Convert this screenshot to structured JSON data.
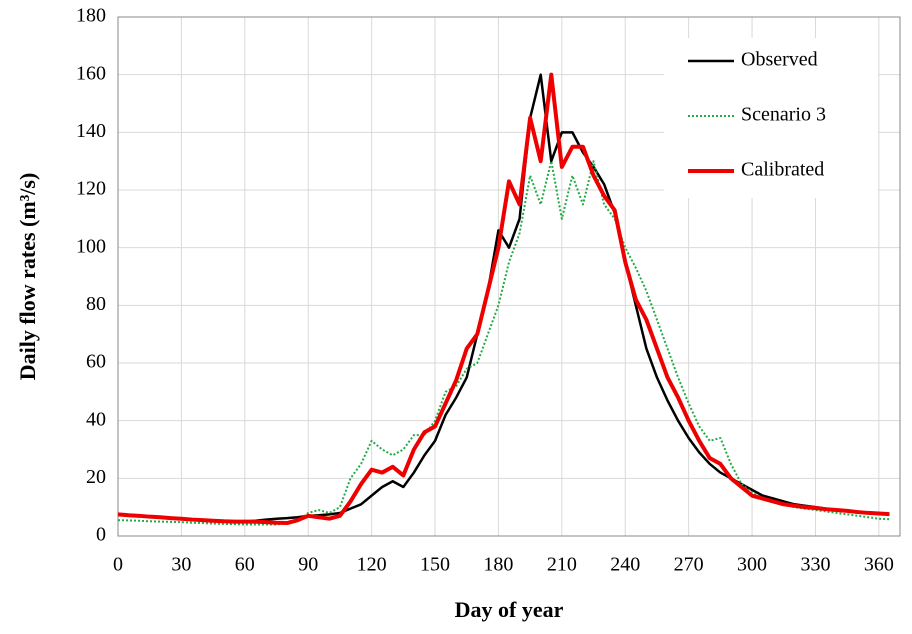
{
  "chart_data": {
    "type": "line",
    "x_label": "Day of year",
    "y_label": "Daily flow rates (m³/s)",
    "x": [
      0,
      5,
      10,
      15,
      20,
      25,
      30,
      35,
      40,
      45,
      50,
      55,
      60,
      65,
      70,
      75,
      80,
      85,
      90,
      95,
      100,
      105,
      110,
      115,
      120,
      125,
      130,
      135,
      140,
      145,
      150,
      155,
      160,
      165,
      170,
      175,
      180,
      185,
      190,
      195,
      200,
      205,
      210,
      215,
      220,
      225,
      230,
      235,
      240,
      245,
      250,
      255,
      260,
      265,
      270,
      275,
      280,
      285,
      290,
      295,
      300,
      305,
      310,
      315,
      320,
      325,
      330,
      335,
      340,
      345,
      350,
      355,
      360,
      365
    ],
    "series": [
      {
        "name": "Observed",
        "color": "#000000",
        "style": "solid",
        "width": 2.5,
        "values": [
          7.5,
          7.2,
          7,
          6.7,
          6.5,
          6.2,
          6,
          5.7,
          5.5,
          5.2,
          5,
          5,
          5,
          5.3,
          5.7,
          6,
          6.2,
          6.5,
          7,
          7.2,
          7.5,
          8,
          9.5,
          11,
          14,
          17,
          19,
          17,
          22,
          28,
          33,
          42,
          48,
          55,
          70,
          85,
          106,
          100,
          110,
          145,
          160,
          130,
          140,
          140,
          133,
          128,
          122,
          112,
          95,
          80,
          65,
          55,
          47,
          40,
          34,
          29,
          25,
          22,
          20,
          18,
          16,
          14,
          13,
          12,
          11,
          10.5,
          10,
          9.5,
          9,
          8.7,
          8.3,
          8,
          7.7,
          7.5
        ]
      },
      {
        "name": "Scenario 3",
        "color": "#22aa44",
        "style": "dotted",
        "width": 2,
        "values": [
          5.5,
          5.4,
          5.3,
          5.1,
          5,
          4.9,
          4.8,
          4.6,
          4.5,
          4.3,
          4.2,
          4.1,
          4,
          4,
          4,
          4,
          4.5,
          5,
          8,
          9,
          8,
          10,
          20,
          25,
          33,
          30,
          28,
          30,
          35,
          35,
          40,
          50,
          52,
          58,
          60,
          70,
          80,
          95,
          105,
          125,
          115,
          130,
          110,
          125,
          115,
          130,
          115,
          110,
          100,
          93,
          85,
          75,
          65,
          55,
          46,
          38,
          33,
          34,
          25,
          18,
          15,
          13,
          12,
          11,
          10,
          9.5,
          9,
          8.5,
          8,
          7.5,
          7,
          6.5,
          6,
          5.8
        ]
      },
      {
        "name": "Calibrated",
        "color": "#ee0000",
        "style": "solid",
        "width": 4,
        "values": [
          7.5,
          7.2,
          7,
          6.7,
          6.5,
          6.2,
          6,
          5.7,
          5.5,
          5.3,
          5.1,
          5,
          5,
          5,
          4.8,
          4.6,
          4.5,
          5.5,
          7,
          6.5,
          6,
          7,
          12,
          18,
          23,
          22,
          24,
          21,
          30,
          36,
          38,
          46,
          54,
          65,
          70,
          85,
          100,
          123,
          115,
          145,
          130,
          160,
          128,
          135,
          135,
          125,
          118,
          113,
          95,
          82,
          75,
          65,
          55,
          48,
          40,
          33,
          27,
          25,
          20,
          17,
          14,
          13,
          12,
          11,
          10.5,
          10,
          9.7,
          9.3,
          9,
          8.7,
          8.3,
          8,
          7.8,
          7.6
        ]
      }
    ],
    "xlim": [
      0,
      370
    ],
    "xticks": [
      0,
      30,
      60,
      90,
      120,
      150,
      180,
      210,
      240,
      270,
      300,
      330,
      360
    ],
    "ylim": [
      0,
      180
    ],
    "yticks": [
      0,
      20,
      40,
      60,
      80,
      100,
      120,
      140,
      160,
      180
    ],
    "grid": true
  }
}
